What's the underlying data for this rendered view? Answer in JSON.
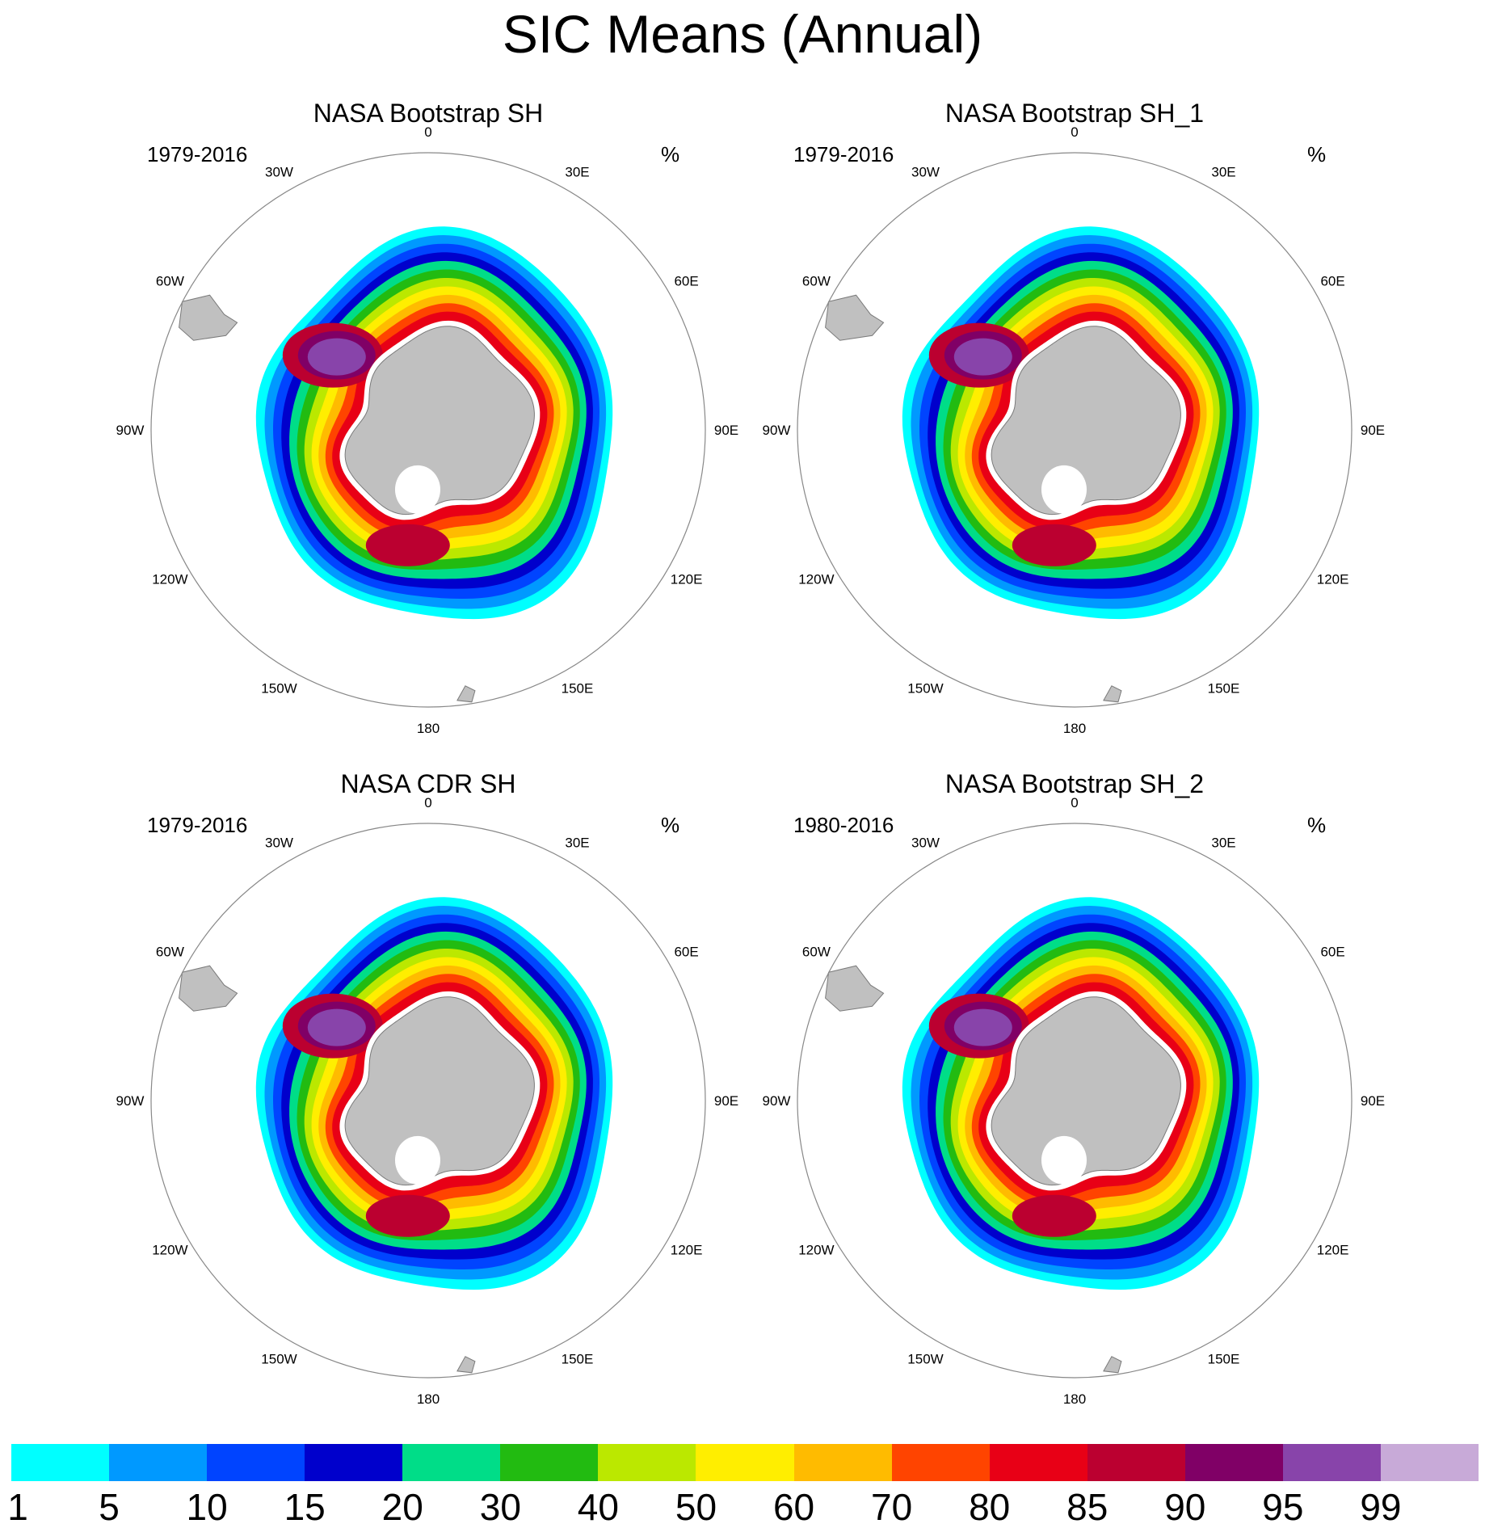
{
  "figure": {
    "title": "SIC Means (Annual)"
  },
  "colors": {
    "land": "#c0c0c0",
    "coast": "#7a7a7a",
    "outline": "#888888"
  },
  "panels": [
    {
      "title": "NASA Bootstrap SH",
      "period": "1979-2016",
      "units": "%"
    },
    {
      "title": "NASA Bootstrap SH_1",
      "period": "1979-2016",
      "units": "%"
    },
    {
      "title": "NASA CDR SH",
      "period": "1979-2016",
      "units": "%"
    },
    {
      "title": "NASA Bootstrap SH_2",
      "period": "1980-2016",
      "units": "%"
    }
  ],
  "longitude_labels": [
    "0",
    "30E",
    "60E",
    "90E",
    "120E",
    "150E",
    "180",
    "150W",
    "120W",
    "90W",
    "60W",
    "30W"
  ],
  "colorbar": {
    "levels": [
      "1",
      "5",
      "10",
      "15",
      "20",
      "30",
      "40",
      "50",
      "60",
      "70",
      "80",
      "85",
      "90",
      "95",
      "99"
    ],
    "colors": [
      "#00ffff",
      "#0099ff",
      "#0044ff",
      "#0000cc",
      "#00dd88",
      "#22bb11",
      "#bbe800",
      "#ffee00",
      "#ffbb00",
      "#ff4400",
      "#e80016",
      "#bb0030",
      "#800066",
      "#8844aa",
      "#c8aad8"
    ]
  }
}
